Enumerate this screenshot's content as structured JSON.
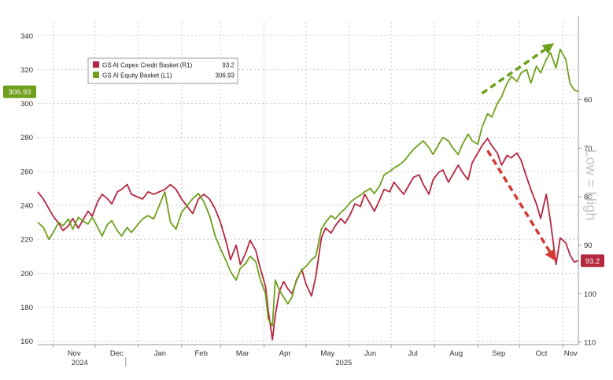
{
  "chart_data": {
    "type": "line",
    "title": "",
    "xlabel": "",
    "ylabel": "",
    "x_axis": {
      "range": [
        "2024-10-21",
        "2025-11-12"
      ],
      "month_ticks": [
        {
          "label": "Nov",
          "date": "2024-11-01"
        },
        {
          "label": "Dec",
          "date": "2024-12-01"
        },
        {
          "label": "Jan",
          "date": "2025-01-01"
        },
        {
          "label": "Feb",
          "date": "2025-02-01"
        },
        {
          "label": "Mar",
          "date": "2025-03-01"
        },
        {
          "label": "Apr",
          "date": "2025-04-01"
        },
        {
          "label": "May",
          "date": "2025-05-01"
        },
        {
          "label": "Jun",
          "date": "2025-06-01"
        },
        {
          "label": "Jul",
          "date": "2025-07-01"
        },
        {
          "label": "Aug",
          "date": "2025-08-01"
        },
        {
          "label": "Sep",
          "date": "2025-09-01"
        },
        {
          "label": "Oct",
          "date": "2025-10-01"
        },
        {
          "label": "Nov",
          "date": "2025-11-01"
        }
      ],
      "year_labels": [
        {
          "label": "2024",
          "date": "2024-11-20"
        },
        {
          "label": "2025",
          "date": "2025-05-28"
        }
      ],
      "year_separator_date": "2024-12-23"
    },
    "y_left": {
      "min": 158,
      "max": 348,
      "ticks": [
        160,
        180,
        200,
        220,
        240,
        260,
        280,
        300,
        320,
        340
      ]
    },
    "y_right": {
      "inverted": true,
      "min": 44,
      "max": 110.5,
      "ticks": [
        60,
        70,
        80,
        90,
        100,
        110
      ],
      "label": "Low = High"
    },
    "legend": {
      "position": "top-left",
      "entries": [
        {
          "name": "GS AI Capex Credit Basket (R1)",
          "value": "93.2",
          "color": "#b5263f"
        },
        {
          "name": "GS AI Equity Basket (L1)",
          "value": "306.93",
          "color": "#6ea01c"
        }
      ]
    },
    "series": [
      {
        "name": "GS AI Capex Credit Basket (R1)",
        "axis": "right",
        "color": "#b5263f",
        "last_value": "93.2",
        "points": [
          [
            "2024-10-21",
            79.0
          ],
          [
            "2024-10-25",
            80.5
          ],
          [
            "2024-10-29",
            82.5
          ],
          [
            "2024-11-01",
            84.0
          ],
          [
            "2024-11-05",
            85.5
          ],
          [
            "2024-11-08",
            87.0
          ],
          [
            "2024-11-12",
            86.0
          ],
          [
            "2024-11-15",
            84.5
          ],
          [
            "2024-11-19",
            86.5
          ],
          [
            "2024-11-22",
            85.0
          ],
          [
            "2024-11-26",
            83.0
          ],
          [
            "2024-11-29",
            84.0
          ],
          [
            "2024-12-03",
            81.0
          ],
          [
            "2024-12-06",
            79.5
          ],
          [
            "2024-12-10",
            80.5
          ],
          [
            "2024-12-13",
            81.5
          ],
          [
            "2024-12-17",
            79.0
          ],
          [
            "2024-12-20",
            78.5
          ],
          [
            "2024-12-24",
            77.5
          ],
          [
            "2024-12-27",
            79.5
          ],
          [
            "2024-12-31",
            80.0
          ],
          [
            "2025-01-04",
            80.5
          ],
          [
            "2025-01-08",
            79.0
          ],
          [
            "2025-01-12",
            79.5
          ],
          [
            "2025-01-16",
            79.0
          ],
          [
            "2025-01-20",
            78.5
          ],
          [
            "2025-01-24",
            77.5
          ],
          [
            "2025-01-28",
            78.5
          ],
          [
            "2025-02-01",
            80.5
          ],
          [
            "2025-02-05",
            82.0
          ],
          [
            "2025-02-09",
            83.5
          ],
          [
            "2025-02-13",
            80.5
          ],
          [
            "2025-02-17",
            79.5
          ],
          [
            "2025-02-21",
            80.5
          ],
          [
            "2025-02-25",
            82.5
          ],
          [
            "2025-03-01",
            85.5
          ],
          [
            "2025-03-05",
            89.5
          ],
          [
            "2025-03-08",
            93.0
          ],
          [
            "2025-03-12",
            90.0
          ],
          [
            "2025-03-15",
            94.0
          ],
          [
            "2025-03-19",
            91.5
          ],
          [
            "2025-03-22",
            89.0
          ],
          [
            "2025-03-26",
            91.0
          ],
          [
            "2025-03-29",
            94.5
          ],
          [
            "2025-04-02",
            98.5
          ],
          [
            "2025-04-04",
            103.5
          ],
          [
            "2025-04-07",
            109.5
          ],
          [
            "2025-04-09",
            104.5
          ],
          [
            "2025-04-12",
            99.5
          ],
          [
            "2025-04-15",
            97.5
          ],
          [
            "2025-04-18",
            99.0
          ],
          [
            "2025-04-21",
            100.0
          ],
          [
            "2025-04-24",
            97.5
          ],
          [
            "2025-04-28",
            95.0
          ],
          [
            "2025-05-01",
            98.0
          ],
          [
            "2025-05-05",
            100.5
          ],
          [
            "2025-05-08",
            96.5
          ],
          [
            "2025-05-12",
            88.5
          ],
          [
            "2025-05-15",
            86.5
          ],
          [
            "2025-05-19",
            87.5
          ],
          [
            "2025-05-22",
            86.0
          ],
          [
            "2025-05-26",
            84.5
          ],
          [
            "2025-05-29",
            85.5
          ],
          [
            "2025-06-02",
            83.5
          ],
          [
            "2025-06-05",
            81.5
          ],
          [
            "2025-06-09",
            82.0
          ],
          [
            "2025-06-12",
            79.5
          ],
          [
            "2025-06-16",
            81.5
          ],
          [
            "2025-06-19",
            83.0
          ],
          [
            "2025-06-23",
            80.5
          ],
          [
            "2025-06-26",
            78.5
          ],
          [
            "2025-06-30",
            79.0
          ],
          [
            "2025-07-03",
            77.0
          ],
          [
            "2025-07-07",
            78.5
          ],
          [
            "2025-07-10",
            79.5
          ],
          [
            "2025-07-14",
            77.5
          ],
          [
            "2025-07-17",
            76.0
          ],
          [
            "2025-07-21",
            75.5
          ],
          [
            "2025-07-24",
            77.5
          ],
          [
            "2025-07-28",
            79.5
          ],
          [
            "2025-07-31",
            76.5
          ],
          [
            "2025-08-04",
            75.0
          ],
          [
            "2025-08-07",
            74.5
          ],
          [
            "2025-08-11",
            77.0
          ],
          [
            "2025-08-14",
            75.5
          ],
          [
            "2025-08-18",
            73.5
          ],
          [
            "2025-08-21",
            75.0
          ],
          [
            "2025-08-25",
            76.5
          ],
          [
            "2025-08-28",
            73.0
          ],
          [
            "2025-09-01",
            71.0
          ],
          [
            "2025-09-04",
            69.5
          ],
          [
            "2025-09-08",
            68.0
          ],
          [
            "2025-09-11",
            69.5
          ],
          [
            "2025-09-15",
            71.0
          ],
          [
            "2025-09-18",
            73.5
          ],
          [
            "2025-09-22",
            71.5
          ],
          [
            "2025-09-25",
            72.0
          ],
          [
            "2025-09-29",
            71.0
          ],
          [
            "2025-10-02",
            72.5
          ],
          [
            "2025-10-06",
            76.0
          ],
          [
            "2025-10-09",
            78.5
          ],
          [
            "2025-10-13",
            81.5
          ],
          [
            "2025-10-16",
            84.5
          ],
          [
            "2025-10-20",
            79.5
          ],
          [
            "2025-10-23",
            85.0
          ],
          [
            "2025-10-27",
            94.0
          ],
          [
            "2025-10-30",
            88.5
          ],
          [
            "2025-11-03",
            89.5
          ],
          [
            "2025-11-06",
            92.0
          ],
          [
            "2025-11-09",
            93.5
          ],
          [
            "2025-11-12",
            93.2
          ]
        ]
      },
      {
        "name": "GS AI Equity Basket (L1)",
        "axis": "left",
        "color": "#6ea01c",
        "last_value": "306.93",
        "points": [
          [
            "2024-10-21",
            230
          ],
          [
            "2024-10-25",
            227
          ],
          [
            "2024-10-29",
            220
          ],
          [
            "2024-11-01",
            224
          ],
          [
            "2024-11-05",
            230
          ],
          [
            "2024-11-08",
            228
          ],
          [
            "2024-11-12",
            232
          ],
          [
            "2024-11-15",
            226
          ],
          [
            "2024-11-19",
            233
          ],
          [
            "2024-11-22",
            231
          ],
          [
            "2024-11-26",
            229
          ],
          [
            "2024-11-29",
            233
          ],
          [
            "2024-12-03",
            227
          ],
          [
            "2024-12-06",
            222
          ],
          [
            "2024-12-10",
            229
          ],
          [
            "2024-12-13",
            231
          ],
          [
            "2024-12-17",
            225
          ],
          [
            "2024-12-20",
            222
          ],
          [
            "2024-12-24",
            227
          ],
          [
            "2024-12-27",
            224
          ],
          [
            "2024-12-31",
            228
          ],
          [
            "2025-01-04",
            232
          ],
          [
            "2025-01-08",
            234
          ],
          [
            "2025-01-12",
            232
          ],
          [
            "2025-01-16",
            240
          ],
          [
            "2025-01-20",
            248
          ],
          [
            "2025-01-24",
            230
          ],
          [
            "2025-01-28",
            226
          ],
          [
            "2025-02-01",
            236
          ],
          [
            "2025-02-05",
            240
          ],
          [
            "2025-02-09",
            244
          ],
          [
            "2025-02-13",
            247
          ],
          [
            "2025-02-17",
            242
          ],
          [
            "2025-02-21",
            234
          ],
          [
            "2025-02-25",
            222
          ],
          [
            "2025-03-01",
            214
          ],
          [
            "2025-03-05",
            207
          ],
          [
            "2025-03-08",
            201
          ],
          [
            "2025-03-12",
            196
          ],
          [
            "2025-03-15",
            203
          ],
          [
            "2025-03-19",
            206
          ],
          [
            "2025-03-22",
            210
          ],
          [
            "2025-03-26",
            207
          ],
          [
            "2025-03-29",
            197
          ],
          [
            "2025-04-02",
            188
          ],
          [
            "2025-04-04",
            173
          ],
          [
            "2025-04-07",
            169
          ],
          [
            "2025-04-09",
            196
          ],
          [
            "2025-04-12",
            190
          ],
          [
            "2025-04-15",
            186
          ],
          [
            "2025-04-18",
            182
          ],
          [
            "2025-04-21",
            186
          ],
          [
            "2025-04-24",
            196
          ],
          [
            "2025-04-28",
            202
          ],
          [
            "2025-05-01",
            204
          ],
          [
            "2025-05-05",
            208
          ],
          [
            "2025-05-08",
            210
          ],
          [
            "2025-05-12",
            226
          ],
          [
            "2025-05-15",
            230
          ],
          [
            "2025-05-19",
            234
          ],
          [
            "2025-05-22",
            232
          ],
          [
            "2025-05-26",
            236
          ],
          [
            "2025-05-29",
            238
          ],
          [
            "2025-06-02",
            242
          ],
          [
            "2025-06-05",
            244
          ],
          [
            "2025-06-09",
            246
          ],
          [
            "2025-06-12",
            248
          ],
          [
            "2025-06-16",
            250
          ],
          [
            "2025-06-19",
            247
          ],
          [
            "2025-06-23",
            252
          ],
          [
            "2025-06-26",
            258
          ],
          [
            "2025-06-30",
            260
          ],
          [
            "2025-07-03",
            262
          ],
          [
            "2025-07-07",
            264
          ],
          [
            "2025-07-10",
            266
          ],
          [
            "2025-07-14",
            270
          ],
          [
            "2025-07-17",
            273
          ],
          [
            "2025-07-21",
            276
          ],
          [
            "2025-07-24",
            278
          ],
          [
            "2025-07-28",
            274
          ],
          [
            "2025-07-31",
            270
          ],
          [
            "2025-08-04",
            276
          ],
          [
            "2025-08-07",
            280
          ],
          [
            "2025-08-11",
            278
          ],
          [
            "2025-08-14",
            274
          ],
          [
            "2025-08-18",
            270
          ],
          [
            "2025-08-21",
            276
          ],
          [
            "2025-08-25",
            282
          ],
          [
            "2025-08-28",
            278
          ],
          [
            "2025-09-01",
            276
          ],
          [
            "2025-09-04",
            286
          ],
          [
            "2025-09-08",
            294
          ],
          [
            "2025-09-11",
            292
          ],
          [
            "2025-09-15",
            300
          ],
          [
            "2025-09-18",
            304
          ],
          [
            "2025-09-22",
            312
          ],
          [
            "2025-09-25",
            316
          ],
          [
            "2025-09-29",
            313
          ],
          [
            "2025-10-02",
            318
          ],
          [
            "2025-10-06",
            320
          ],
          [
            "2025-10-09",
            312
          ],
          [
            "2025-10-13",
            322
          ],
          [
            "2025-10-16",
            318
          ],
          [
            "2025-10-20",
            326
          ],
          [
            "2025-10-23",
            330
          ],
          [
            "2025-10-27",
            321
          ],
          [
            "2025-10-30",
            332
          ],
          [
            "2025-11-03",
            326
          ],
          [
            "2025-11-06",
            312
          ],
          [
            "2025-11-09",
            308
          ],
          [
            "2025-11-12",
            306.93
          ]
        ]
      }
    ],
    "annotations": [
      {
        "type": "dashed-arrow",
        "color": "#6ea01c",
        "from": {
          "date": "2025-09-04",
          "value": 306,
          "axis": "left"
        },
        "to": {
          "date": "2025-10-23",
          "value": 334,
          "axis": "left"
        }
      },
      {
        "type": "dashed-arrow",
        "color": "#d43a30",
        "from": {
          "date": "2025-09-08",
          "value": 70.5,
          "axis": "right"
        },
        "to": {
          "date": "2025-10-25",
          "value": 92.5,
          "axis": "right"
        }
      }
    ],
    "grid": true
  }
}
